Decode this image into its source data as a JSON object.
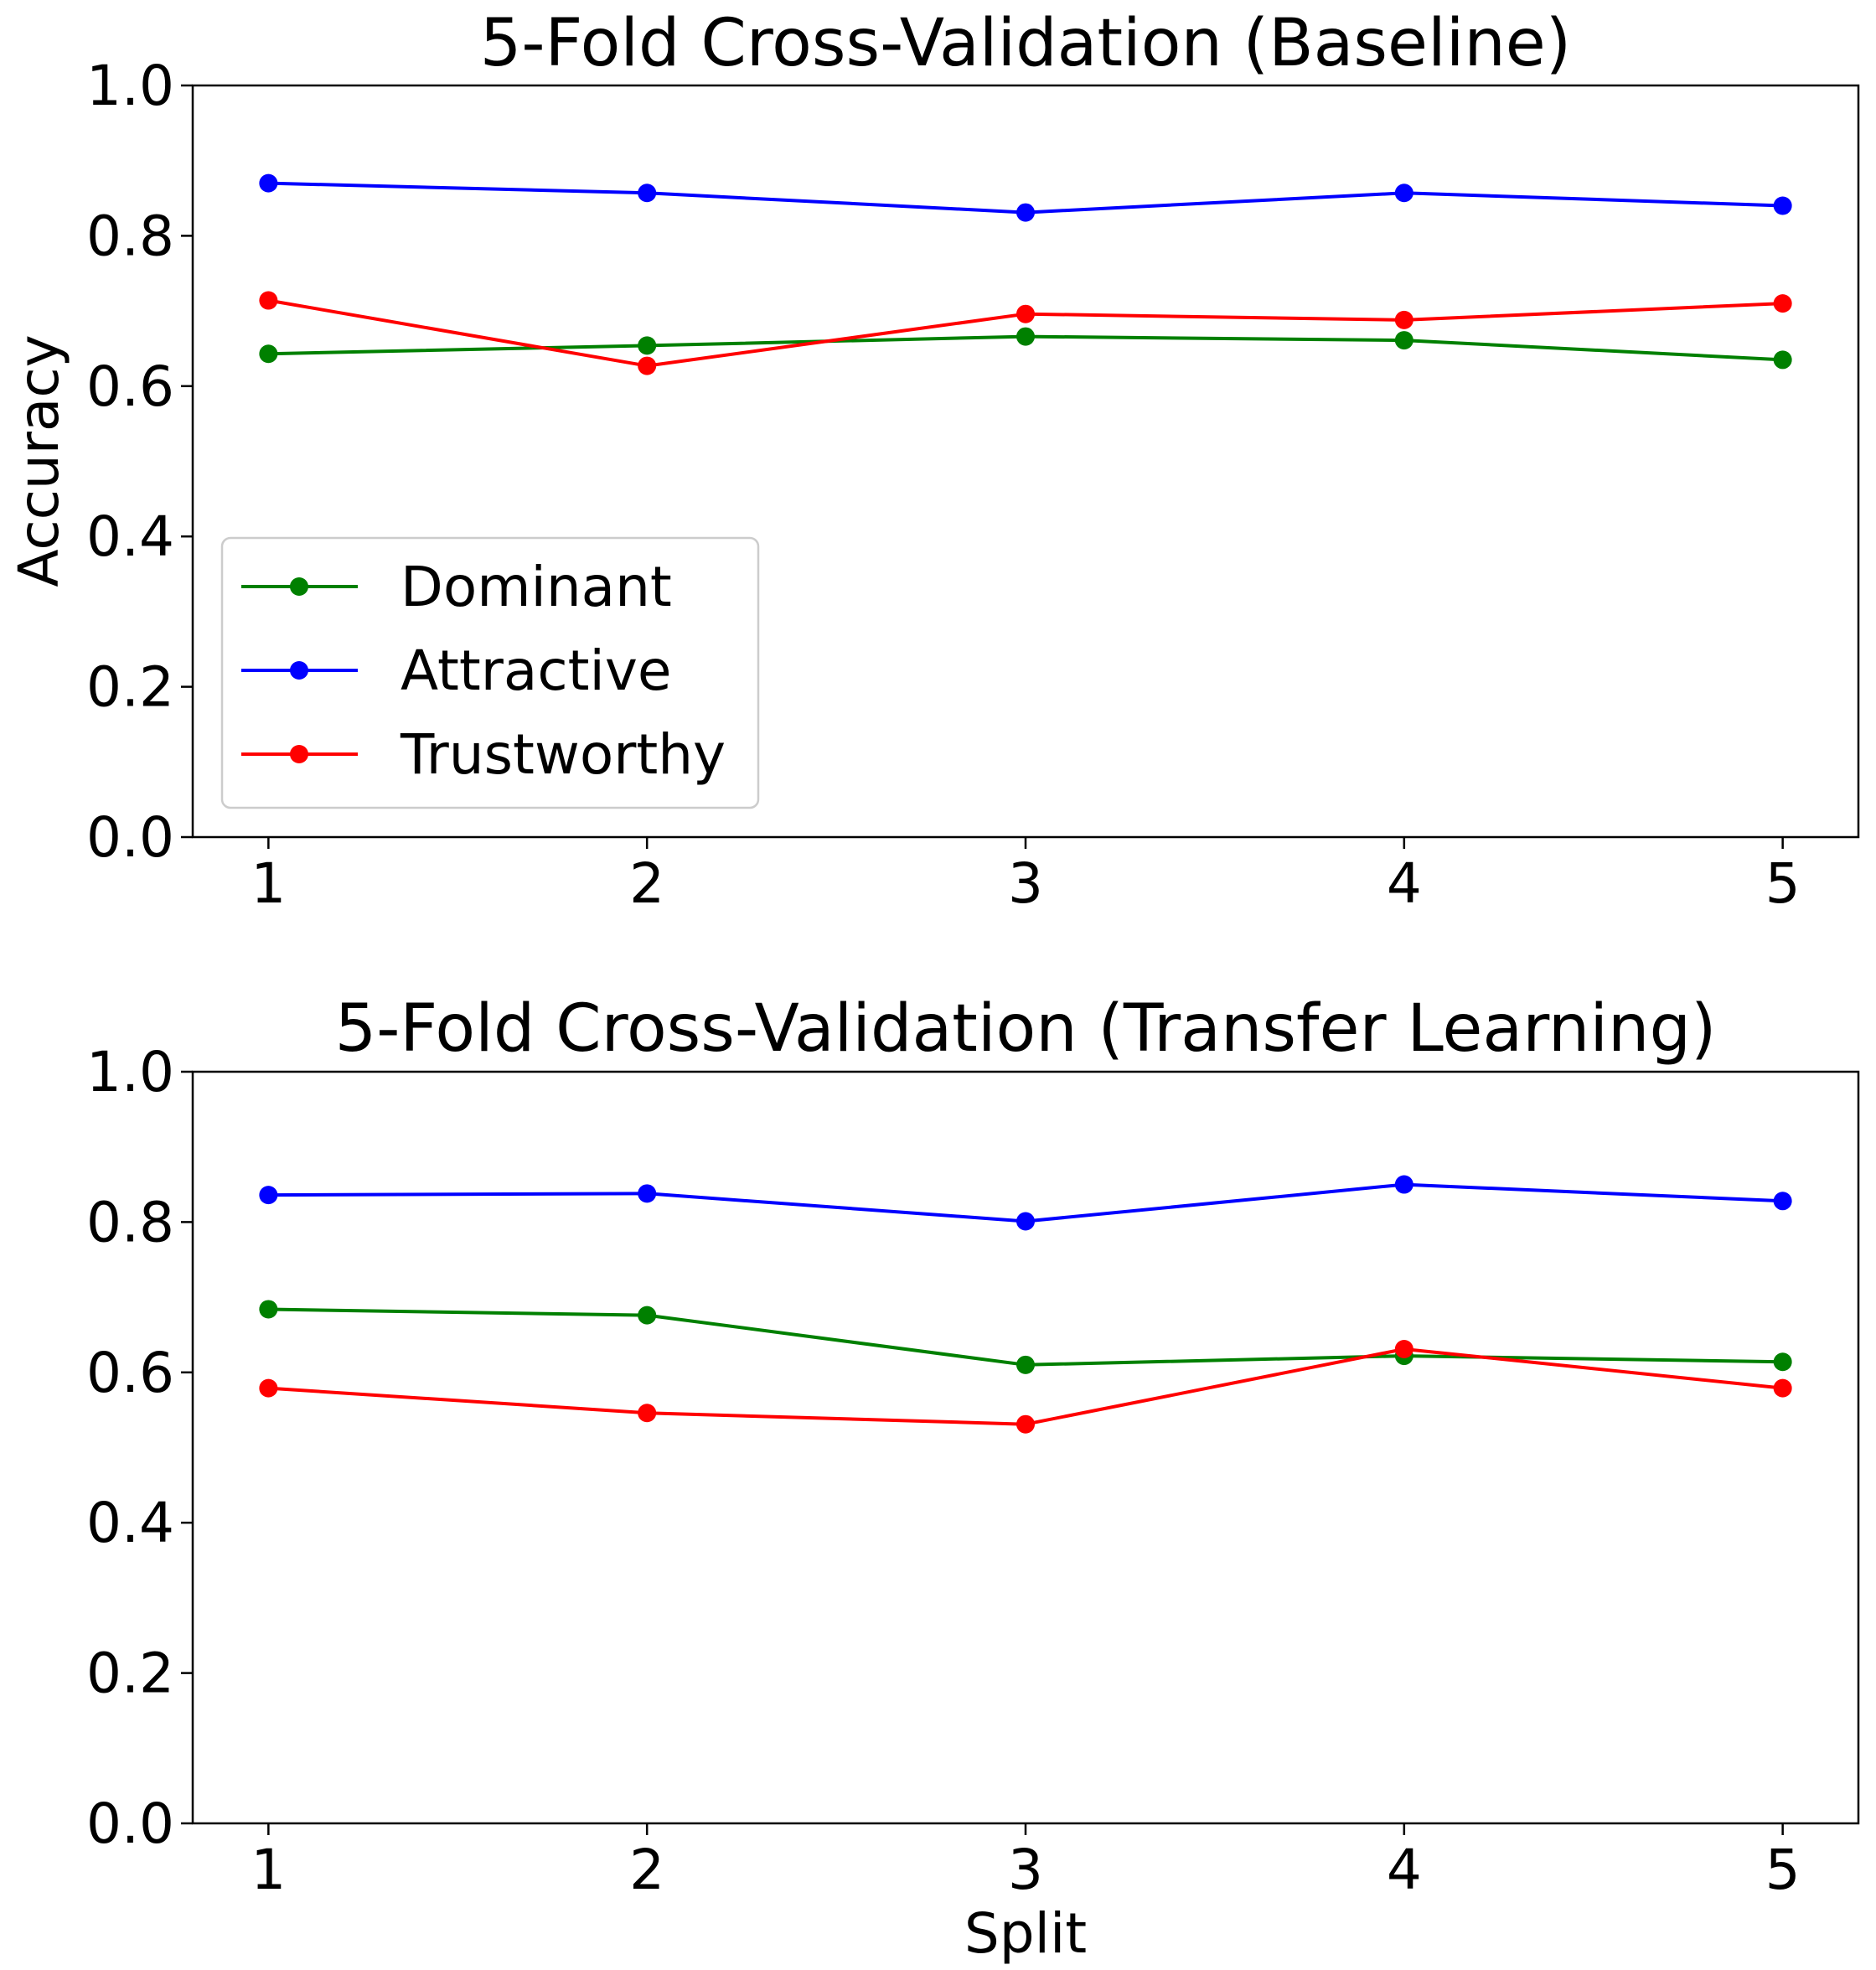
{
  "chart_data": [
    {
      "type": "line",
      "title": "5-Fold Cross-Validation (Baseline)",
      "xlabel": "",
      "ylabel": "Accuracy",
      "x": [
        1,
        2,
        3,
        4,
        5
      ],
      "x_tick_labels": [
        "1",
        "2",
        "3",
        "4",
        "5"
      ],
      "y_ticks": [
        0.0,
        0.2,
        0.4,
        0.6,
        0.8,
        1.0
      ],
      "y_tick_labels": [
        "0.0",
        "0.2",
        "0.4",
        "0.6",
        "0.8",
        "1.0"
      ],
      "xlim": [
        0.8,
        5.2
      ],
      "ylim": [
        0.0,
        1.0
      ],
      "legend": {
        "placement": "lower-left",
        "entries": [
          "Dominant",
          "Attractive",
          "Trustworthy"
        ]
      },
      "series": [
        {
          "name": "Dominant",
          "color": "#008000",
          "values": [
            0.643,
            0.654,
            0.666,
            0.661,
            0.635
          ]
        },
        {
          "name": "Attractive",
          "color": "#0000ff",
          "values": [
            0.87,
            0.857,
            0.831,
            0.857,
            0.84
          ]
        },
        {
          "name": "Trustworthy",
          "color": "#ff0000",
          "values": [
            0.714,
            0.627,
            0.696,
            0.688,
            0.71
          ]
        }
      ]
    },
    {
      "type": "line",
      "title": "5-Fold Cross-Validation (Transfer Learning)",
      "xlabel": "Split",
      "ylabel": "",
      "x": [
        1,
        2,
        3,
        4,
        5
      ],
      "x_tick_labels": [
        "1",
        "2",
        "3",
        "4",
        "5"
      ],
      "y_ticks": [
        0.0,
        0.2,
        0.4,
        0.6,
        0.8,
        1.0
      ],
      "y_tick_labels": [
        "0.0",
        "0.2",
        "0.4",
        "0.6",
        "0.8",
        "1.0"
      ],
      "xlim": [
        0.8,
        5.2
      ],
      "ylim": [
        0.0,
        1.0
      ],
      "series": [
        {
          "name": "Dominant",
          "color": "#008000",
          "values": [
            0.684,
            0.676,
            0.61,
            0.622,
            0.614
          ]
        },
        {
          "name": "Attractive",
          "color": "#0000ff",
          "values": [
            0.836,
            0.838,
            0.801,
            0.85,
            0.828
          ]
        },
        {
          "name": "Trustworthy",
          "color": "#ff0000",
          "values": [
            0.579,
            0.546,
            0.531,
            0.631,
            0.579
          ]
        }
      ]
    }
  ]
}
